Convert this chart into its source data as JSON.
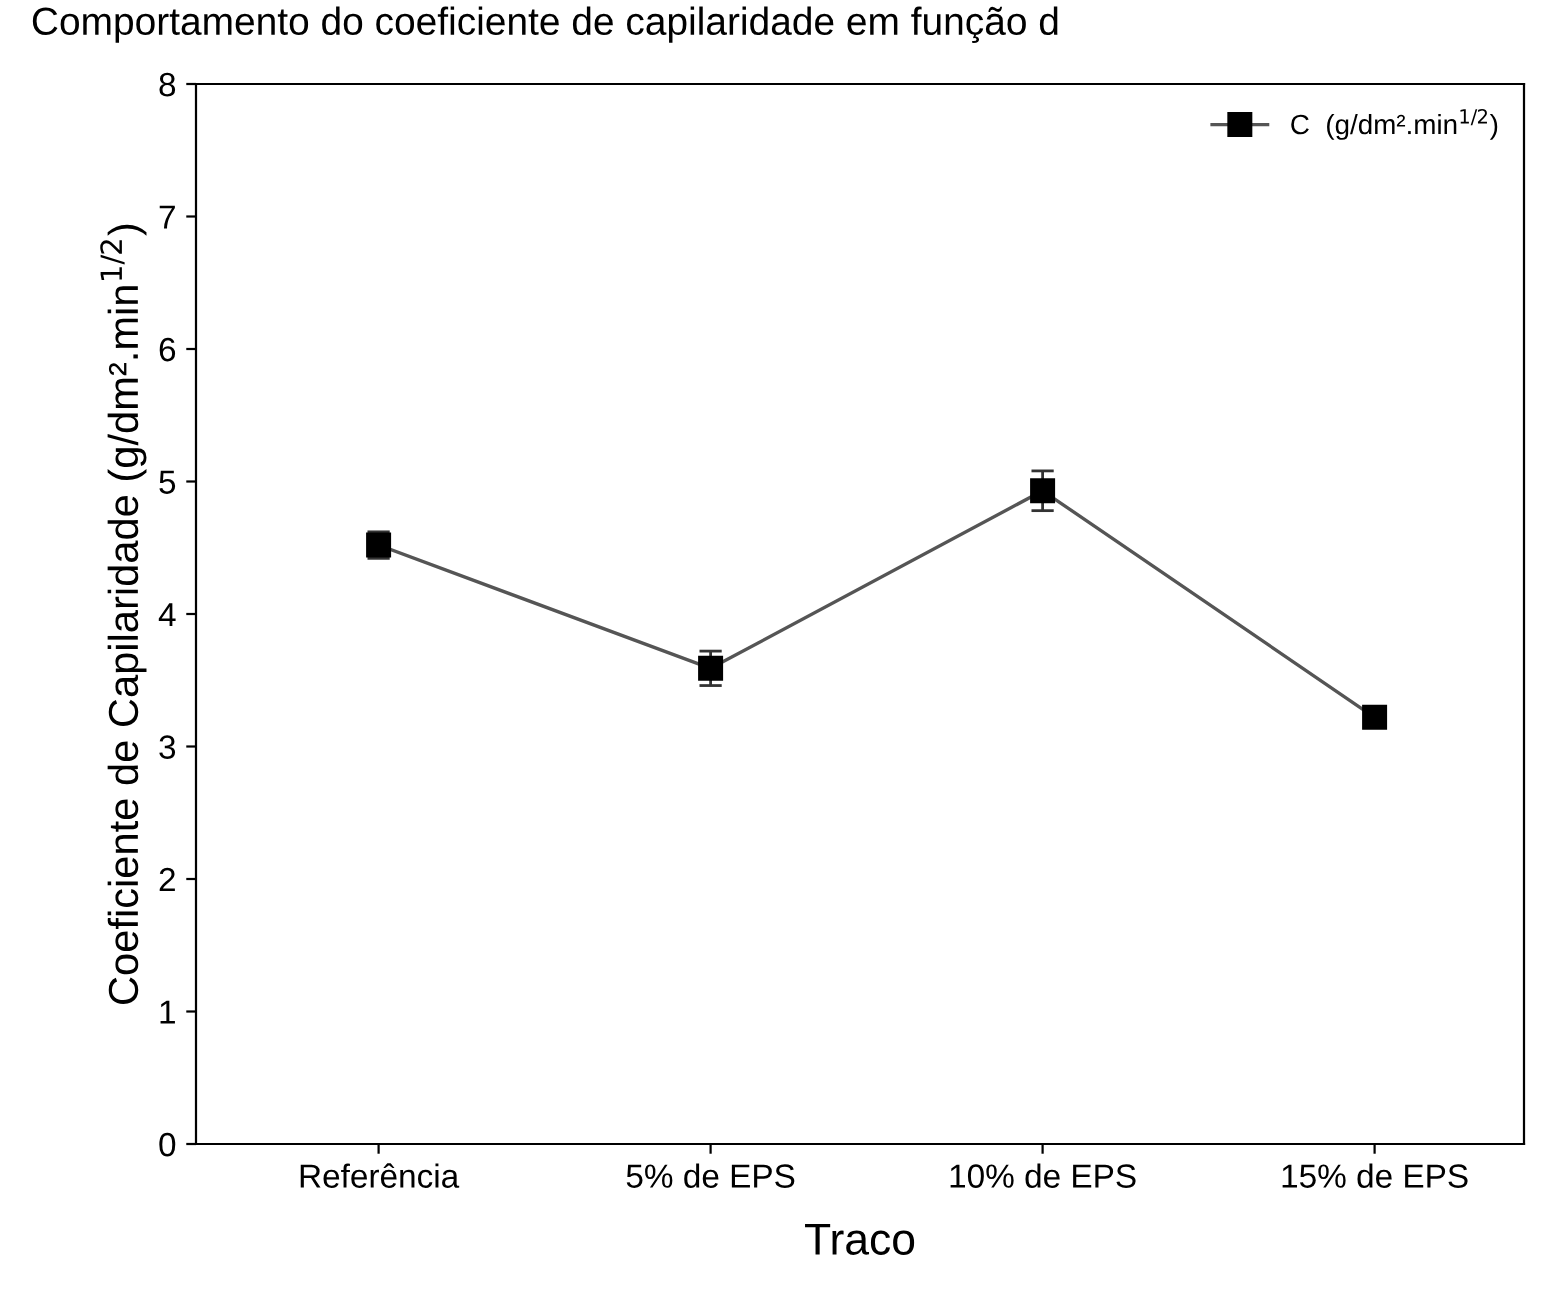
{
  "chart_data": {
    "type": "line",
    "title": "Comportamento do coeficiente de capilaridade em função d",
    "xlabel": "Traco",
    "ylabel": "Coeficiente de Capilaridade (g/dm².min$^{1/2}$)",
    "categories": [
      "Referência",
      "5% de EPS",
      "10% de EPS",
      "15% de EPS"
    ],
    "series": [
      {
        "name": "C  (g/dm².min$^{1/2}$)",
        "color": "#000000",
        "values": [
          4.52,
          3.59,
          4.93,
          3.22
        ],
        "errors": [
          0.1,
          0.13,
          0.15,
          0.03
        ]
      }
    ],
    "ylim": [
      0,
      8
    ],
    "yticks": [
      0,
      1,
      2,
      3,
      4,
      5,
      6,
      7,
      8
    ],
    "marker": "square",
    "line_style": "solid",
    "legend": "top right",
    "grid": false
  }
}
